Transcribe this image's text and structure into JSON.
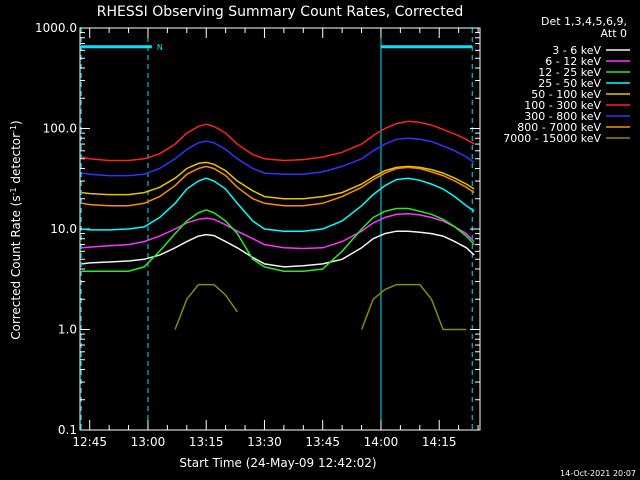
{
  "chart_data": {
    "type": "line",
    "title": "RHESSI Observing Summary Count Rates, Corrected",
    "xlabel": "Start Time (24-May-09 12:42:02)",
    "ylabel_main": "Corrected Count Rate (s",
    "ylabel_sup1": "-1",
    "ylabel_mid": " detector",
    "ylabel_sup2": "-1",
    "ylabel_end": ")",
    "footer": "14-Oct-2021 20:07",
    "yscale": "log",
    "ylim": [
      0.1,
      1000
    ],
    "xlim_minutes": [
      -2.5,
      100.5
    ],
    "x_ticks": [
      {
        "label": "12:45",
        "minutes": 0
      },
      {
        "label": "13:00",
        "minutes": 15
      },
      {
        "label": "13:15",
        "minutes": 30
      },
      {
        "label": "13:30",
        "minutes": 45
      },
      {
        "label": "13:45",
        "minutes": 60
      },
      {
        "label": "14:00",
        "minutes": 75
      },
      {
        "label": "14:15",
        "minutes": 90
      }
    ],
    "y_ticks": [
      {
        "label": "1000.0",
        "value": 1000
      },
      {
        "label": "100.0",
        "value": 100
      },
      {
        "label": "10.0",
        "value": 10
      },
      {
        "label": "1.0",
        "value": 1
      },
      {
        "label": "0.1",
        "value": 0.1
      }
    ],
    "legend_header": [
      "Det 1,3,4,5,6,9,",
      "Att 0"
    ],
    "legend_position": "right",
    "night_marker": "N",
    "annotations": {
      "night_bars": [
        [
          -2.2,
          16
        ],
        [
          75,
          98.5
        ]
      ],
      "dashed_lines": [
        -2.2,
        15,
        98.5
      ],
      "solid_lines": [
        75
      ]
    },
    "x_minutes": [
      -2,
      0,
      5,
      10,
      14,
      18,
      22,
      25,
      28,
      30,
      32,
      35,
      38,
      42,
      45,
      50,
      55,
      60,
      65,
      70,
      73,
      76,
      79,
      82,
      85,
      88,
      91,
      94,
      97,
      99
    ],
    "series": [
      {
        "name": "3 - 6 keV",
        "color": "#f2f2f2",
        "values": [
          4.5,
          4.6,
          4.7,
          4.8,
          5.0,
          5.5,
          6.5,
          7.5,
          8.5,
          8.8,
          8.6,
          7.5,
          6.5,
          5.2,
          4.5,
          4.2,
          4.3,
          4.5,
          5.0,
          6.5,
          8.0,
          9.0,
          9.5,
          9.5,
          9.3,
          9.0,
          8.5,
          7.5,
          6.5,
          5.5
        ]
      },
      {
        "name": "6 - 12 keV",
        "color": "#ff33ff",
        "values": [
          6.5,
          6.6,
          6.8,
          7.0,
          7.5,
          8.5,
          10,
          11.5,
          12.5,
          12.8,
          12.5,
          11,
          9.5,
          8,
          7,
          6.5,
          6.4,
          6.5,
          7.5,
          9.5,
          11.5,
          13,
          14,
          14.2,
          13.8,
          13,
          12,
          10.5,
          9,
          7.5
        ]
      },
      {
        "name": "12 - 25 keV",
        "color": "#22ee22",
        "values": [
          3.8,
          3.8,
          3.8,
          3.8,
          4.2,
          6,
          9,
          12,
          14.5,
          15.5,
          14.5,
          12,
          9,
          5,
          4.2,
          3.8,
          3.8,
          4,
          6,
          10,
          13,
          15,
          16,
          16,
          15,
          14,
          12.5,
          10.5,
          8.5,
          7
        ]
      },
      {
        "name": "25 - 50 keV",
        "color": "#00ffff",
        "values": [
          10,
          9.8,
          9.8,
          10,
          10.5,
          13,
          18,
          25,
          30,
          32,
          30,
          25,
          18,
          12,
          10,
          9.5,
          9.5,
          10,
          12,
          17,
          22,
          27,
          31,
          32,
          30.5,
          28,
          25,
          21,
          17,
          15
        ]
      },
      {
        "name": "50 - 100 keV",
        "color": "#e6c300",
        "values": [
          23,
          22.5,
          22,
          22,
          23,
          26,
          32,
          40,
          45,
          46,
          44,
          38,
          30,
          24,
          21,
          20,
          20,
          21,
          23,
          28,
          33,
          38,
          41,
          42,
          41,
          39,
          36,
          32,
          28,
          25
        ]
      },
      {
        "name": "100 - 300 keV",
        "color": "#ff2222",
        "values": [
          52,
          50,
          48,
          48,
          50,
          56,
          70,
          90,
          105,
          110,
          105,
          90,
          70,
          55,
          50,
          48,
          49,
          52,
          58,
          70,
          85,
          100,
          112,
          118,
          115,
          108,
          98,
          88,
          78,
          70
        ]
      },
      {
        "name": "300 - 800 keV",
        "color": "#3333ff",
        "values": [
          36,
          35,
          34,
          34,
          35,
          40,
          50,
          62,
          72,
          75,
          72,
          62,
          50,
          40,
          36,
          35,
          35,
          37,
          42,
          50,
          60,
          70,
          78,
          80,
          78,
          74,
          67,
          60,
          52,
          46
        ]
      },
      {
        "name": "800 - 7000 keV",
        "color": "#ff8c00",
        "values": [
          18,
          17.5,
          17,
          17,
          18,
          21,
          27,
          35,
          40,
          42,
          40,
          34,
          26,
          20,
          18,
          17,
          17,
          18,
          21,
          26,
          31,
          36,
          40,
          41,
          40,
          37,
          34,
          30,
          26,
          23
        ]
      },
      {
        "name": "7000 - 15000 keV",
        "color": "#8b8b00",
        "values": [
          null,
          null,
          null,
          null,
          null,
          null,
          1,
          2,
          2.8,
          2.8,
          2.8,
          2.2,
          1.5,
          null,
          null,
          null,
          null,
          null,
          null,
          1,
          2,
          2.5,
          2.8,
          2.8,
          2.8,
          2,
          1,
          1,
          1,
          null
        ]
      }
    ]
  }
}
